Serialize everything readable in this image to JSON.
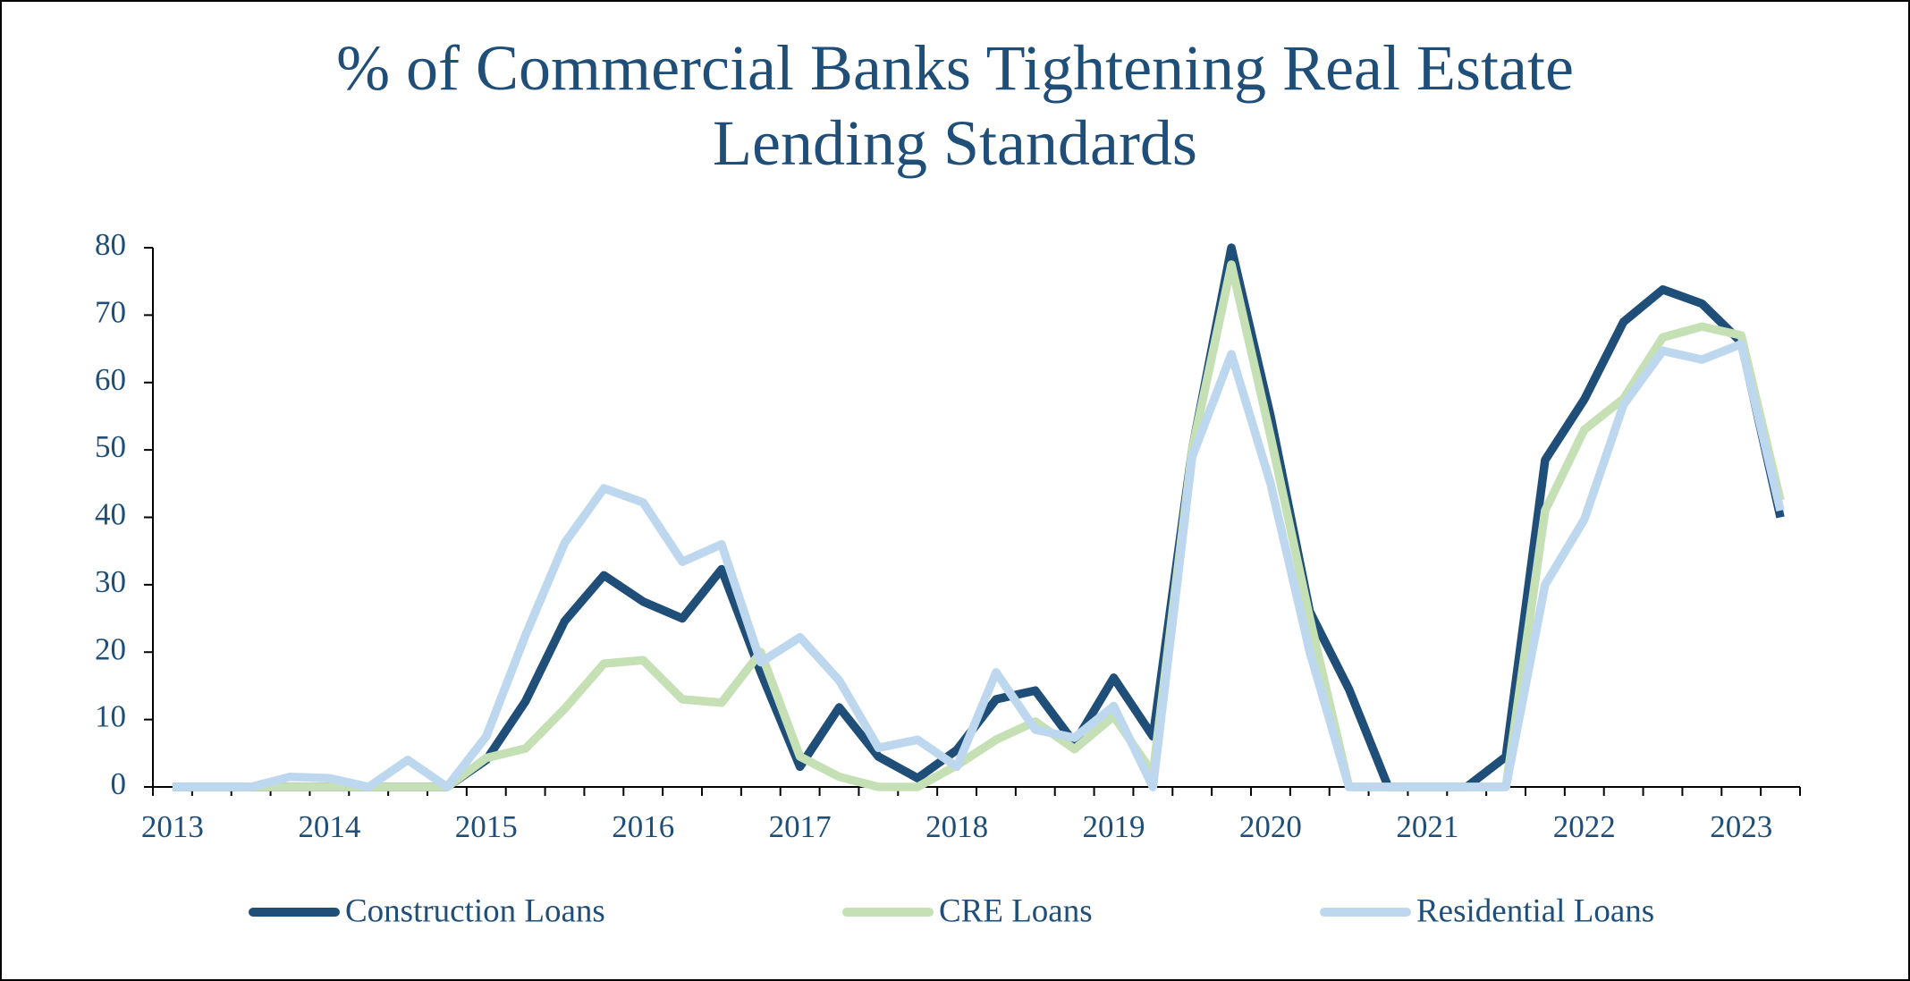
{
  "chart_data": {
    "type": "line",
    "title": "% of Commercial Banks Tightening Real Estate Lending Standards",
    "categories": [
      "2013",
      null,
      null,
      null,
      "2014",
      null,
      null,
      null,
      "2015",
      null,
      null,
      null,
      "2016",
      null,
      null,
      null,
      "2017",
      null,
      null,
      null,
      "2018",
      null,
      null,
      null,
      "2019",
      null,
      null,
      null,
      "2020",
      null,
      null,
      null,
      "2021",
      null,
      null,
      null,
      "2022",
      null,
      null,
      null,
      "2023",
      null
    ],
    "series": [
      {
        "name": "Construction Loans",
        "color": "#1f4e79",
        "values": [
          0,
          0,
          0,
          0,
          0,
          0,
          0,
          0,
          4,
          12.7,
          24.6,
          31.4,
          27.5,
          25,
          32.3,
          17,
          3,
          11.8,
          4.5,
          1.3,
          5.5,
          13,
          14.3,
          6.5,
          16.2,
          7.5,
          50,
          80,
          55,
          26,
          14.5,
          0,
          0,
          0,
          4.5,
          48.5,
          57.5,
          69,
          73.8,
          71.7,
          66,
          40
        ]
      },
      {
        "name": "CRE Loans",
        "color": "#c5e0b4",
        "values": [
          0,
          0,
          0,
          0,
          0,
          0,
          0,
          0,
          4.3,
          5.7,
          11.6,
          18.3,
          18.8,
          13,
          12.5,
          20,
          4.5,
          1.5,
          0,
          0,
          3.2,
          7,
          9.7,
          5.6,
          10.5,
          2,
          50,
          77.5,
          52,
          25,
          0,
          0,
          0,
          0,
          0,
          41,
          53,
          57.6,
          66.7,
          68.3,
          67,
          42.5
        ]
      },
      {
        "name": "Residential Loans",
        "color": "#bdd7ee",
        "values": [
          0,
          0,
          0,
          1.5,
          1.3,
          0,
          4,
          0,
          7.5,
          22.5,
          36.2,
          44.3,
          42.2,
          33.4,
          36,
          18.5,
          22.2,
          15.8,
          5.8,
          7,
          3,
          17,
          8.5,
          7.3,
          12,
          0,
          49,
          64.2,
          45,
          20,
          0,
          0,
          0,
          0,
          0,
          30,
          39.7,
          56.7,
          64.7,
          63.4,
          65.7,
          41
        ]
      }
    ],
    "ylim": [
      0,
      80
    ],
    "yticks": [
      0,
      10,
      20,
      30,
      40,
      50,
      60,
      70,
      80
    ],
    "grid": false,
    "legend": "bottom"
  }
}
